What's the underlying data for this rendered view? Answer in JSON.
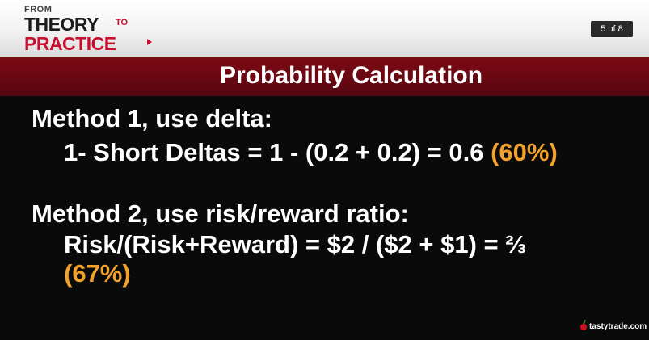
{
  "header": {
    "logo": {
      "from": "FROM",
      "theory": "THEORY",
      "to": "TO",
      "practice": "PRACTICE"
    },
    "page_indicator": "5 of 8"
  },
  "title": "Probability Calculation",
  "method1": {
    "heading": "Method 1, use delta:",
    "formula": "1- Short Deltas = 1 - (0.2 + 0.2) = 0.6 ",
    "result": "(60%)"
  },
  "method2": {
    "heading": "Method 2, use risk/reward ratio:",
    "formula": "Risk/(Risk+Reward)  = $2 / ($2 + $1) = ⅔",
    "result": "(67%)"
  },
  "footer": {
    "brand": "tastytrade.com"
  },
  "colors": {
    "accent_red": "#c8102e",
    "title_bar": "#6a0812",
    "highlight": "#f2a22a",
    "background": "#0a0a0a"
  }
}
